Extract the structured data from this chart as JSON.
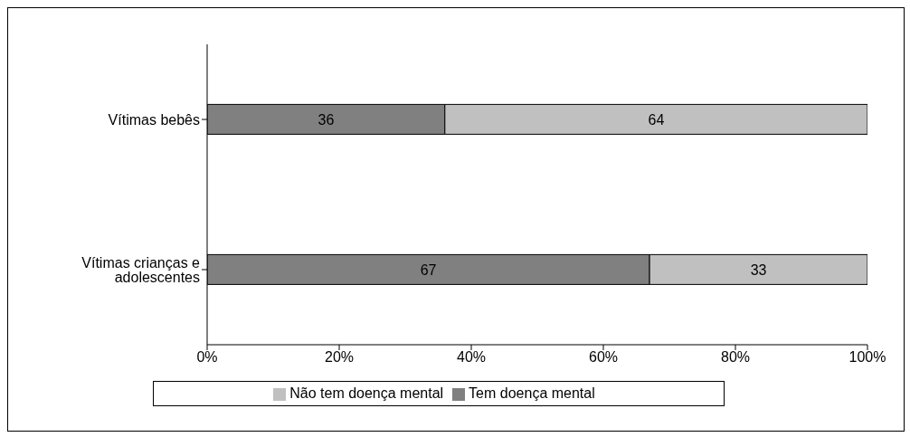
{
  "chart_data": {
    "type": "bar",
    "orientation": "horizontal",
    "stacked": true,
    "categories": [
      "Vítimas bebês",
      "Vítimas crianças e adolescentes"
    ],
    "series": [
      {
        "name": "Tem doença mental",
        "color": "#808080",
        "values": [
          36,
          67
        ]
      },
      {
        "name": "Não tem doença mental",
        "color": "#c0c0c0",
        "values": [
          64,
          33
        ]
      }
    ],
    "xlim": [
      0,
      100
    ],
    "xticks": [
      {
        "value": 0,
        "label": "0%"
      },
      {
        "value": 20,
        "label": "20%"
      },
      {
        "value": 40,
        "label": "40%"
      },
      {
        "value": 60,
        "label": "60%"
      },
      {
        "value": 80,
        "label": "80%"
      },
      {
        "value": 100,
        "label": "100%"
      }
    ],
    "data_labels": true,
    "legend": "bottom"
  }
}
